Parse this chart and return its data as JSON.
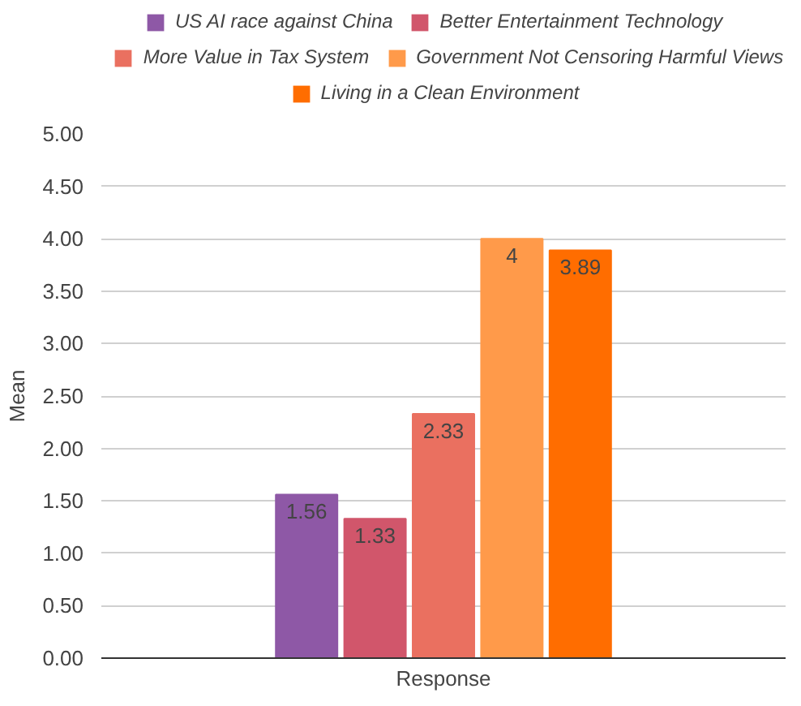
{
  "chart_data": {
    "type": "bar",
    "xlabel": "Response",
    "ylabel": "Mean",
    "categories": [
      null
    ],
    "series": [
      {
        "name": "US AI race against China",
        "color": "#8e58a6",
        "values": [
          1.56
        ]
      },
      {
        "name": "Better Entertainment Technology",
        "color": "#d1566b",
        "values": [
          1.33
        ]
      },
      {
        "name": "More Value in Tax System",
        "color": "#ea7060",
        "values": [
          2.33
        ]
      },
      {
        "name": "Government Not Censoring Harmful Views",
        "color": "#ff9a4a",
        "values": [
          4
        ]
      },
      {
        "name": "Living in a Clean Environment",
        "color": "#ff6d00",
        "values": [
          3.89
        ]
      }
    ],
    "ylim": [
      0,
      5
    ],
    "yticks": [
      {
        "value": 0,
        "label": "0.00"
      },
      {
        "value": 0.5,
        "label": "0.50"
      },
      {
        "value": 1,
        "label": "1.00"
      },
      {
        "value": 1.5,
        "label": "1.50"
      },
      {
        "value": 2,
        "label": "2.00"
      },
      {
        "value": 2.5,
        "label": "2.50"
      },
      {
        "value": 3,
        "label": "3.00"
      },
      {
        "value": 3.5,
        "label": "3.50"
      },
      {
        "value": 4,
        "label": "4.00"
      },
      {
        "value": 4.5,
        "label": "4.50"
      },
      {
        "value": 5,
        "label": "5.00"
      }
    ],
    "grid": "y",
    "legend": "top",
    "data_labels": true,
    "tick_labels": "y"
  }
}
